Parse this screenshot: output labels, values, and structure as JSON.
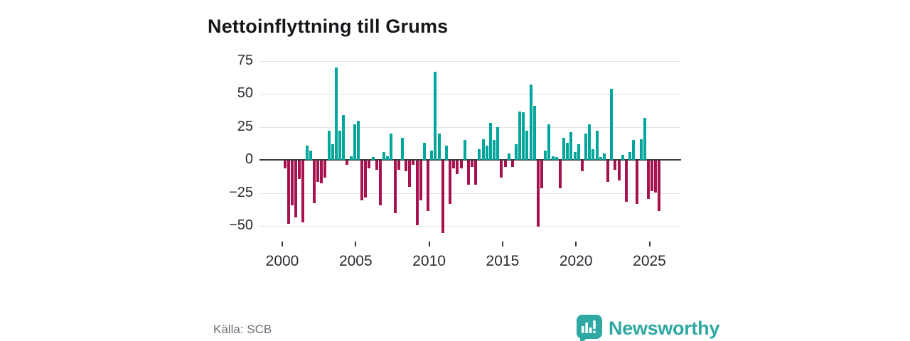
{
  "title": "Nettoinflyttning till Grums",
  "source": "Källa: SCB",
  "brand": {
    "name": "Newsworthy",
    "color": "#2ea8a3",
    "logo_icon": "speech-bubble-bar-chart-icon"
  },
  "colors": {
    "positive": "#00a59c",
    "negative": "#a6124e",
    "grid": "#e4e4e7",
    "zero_line": "#3c3c3c",
    "axis_text": "#2b2b33",
    "title_text": "#16161a",
    "source_text": "#6e6e78"
  },
  "chart_data": {
    "type": "bar",
    "title": "Nettoinflyttning till Grums",
    "xlabel": "",
    "ylabel": "",
    "frequency": "quarterly",
    "period_start": "2000-Q1",
    "period_end": "2025-Q3",
    "ylim": [
      -60,
      80
    ],
    "grid": "horizontal",
    "legend": "none",
    "yticks": [
      {
        "value": 75,
        "label": "75"
      },
      {
        "value": 50,
        "label": "50"
      },
      {
        "value": 25,
        "label": "25"
      },
      {
        "value": 0,
        "label": "0"
      },
      {
        "value": -25,
        "label": "−25"
      },
      {
        "value": -50,
        "label": "−50"
      }
    ],
    "xticks": [
      {
        "year": 2000,
        "label": "2000"
      },
      {
        "year": 2005,
        "label": "2005"
      },
      {
        "year": 2010,
        "label": "2010"
      },
      {
        "year": 2015,
        "label": "2015"
      },
      {
        "year": 2020,
        "label": "2020"
      },
      {
        "year": 2025,
        "label": "2025"
      }
    ],
    "values": [
      -6,
      -48,
      -34,
      -43,
      -14,
      -47,
      11,
      7,
      -32,
      -16,
      -17,
      -13,
      22,
      12,
      70,
      22,
      34,
      -3,
      3,
      27,
      30,
      -30,
      -28,
      -6,
      2,
      -7,
      -34,
      6,
      3,
      20,
      -40,
      -7,
      17,
      -8,
      -20,
      -3,
      -49,
      -30,
      13,
      -38,
      7,
      67,
      20,
      -55,
      11,
      -33,
      -6,
      -10,
      -6,
      15,
      -18,
      -5,
      -18,
      8,
      16,
      11,
      28,
      15,
      25,
      -13,
      -5,
      5,
      -5,
      12,
      37,
      36,
      22,
      57,
      41,
      -50,
      -21,
      7,
      27,
      3,
      2,
      -21,
      17,
      13,
      21,
      6,
      12,
      -8,
      20,
      27,
      8,
      22,
      2,
      5,
      -16,
      54,
      -7,
      -15,
      4,
      -31,
      6,
      15,
      -33,
      16,
      32,
      -29,
      -23,
      -24,
      -38
    ]
  }
}
